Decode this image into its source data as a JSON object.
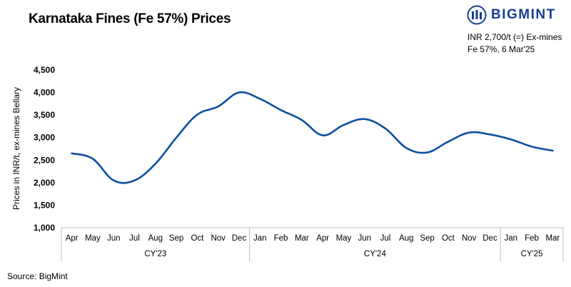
{
  "title": "Karnataka Fines (Fe 57%) Prices",
  "brand": "BIGMINT",
  "note": [
    "INR 2,700/t (=) Ex-mines",
    "Fe 57%, 6 Mar'25"
  ],
  "source": "Source: BigMint",
  "colors": {
    "line": "#0d4fa0",
    "brand": "#163f91"
  },
  "chart_data": {
    "type": "line",
    "title": "Karnataka Fines (Fe 57%) Prices",
    "ylabel": "Prices in INR/t, ex-mines Bellary",
    "ylim": [
      1000,
      4500
    ],
    "yticks": [
      1000,
      1500,
      2000,
      2500,
      3000,
      3500,
      4000,
      4500
    ],
    "ytick_labels": [
      "1,000",
      "1,500",
      "2,000",
      "2,500",
      "3,000",
      "3,500",
      "4,000",
      "4,500"
    ],
    "grid": "none",
    "categories": [
      "Apr",
      "May",
      "Jun",
      "Jul",
      "Aug",
      "Sep",
      "Oct",
      "Nov",
      "Dec",
      "Jan",
      "Feb",
      "Mar",
      "Apr",
      "May",
      "Jun",
      "Jul",
      "Aug",
      "Sep",
      "Oct",
      "Nov",
      "Dec",
      "Jan",
      "Feb",
      "Mar"
    ],
    "groups": [
      {
        "label": "CY'23",
        "count": 9
      },
      {
        "label": "CY'24",
        "count": 12
      },
      {
        "label": "CY'25",
        "count": 3
      }
    ],
    "series": [
      {
        "values": [
          2650,
          2530,
          2050,
          2050,
          2420,
          3000,
          3510,
          3690,
          4000,
          3860,
          3610,
          3390,
          3050,
          3280,
          3410,
          3200,
          2770,
          2670,
          2910,
          3110,
          3070,
          2960,
          2800,
          2710
        ]
      }
    ]
  }
}
